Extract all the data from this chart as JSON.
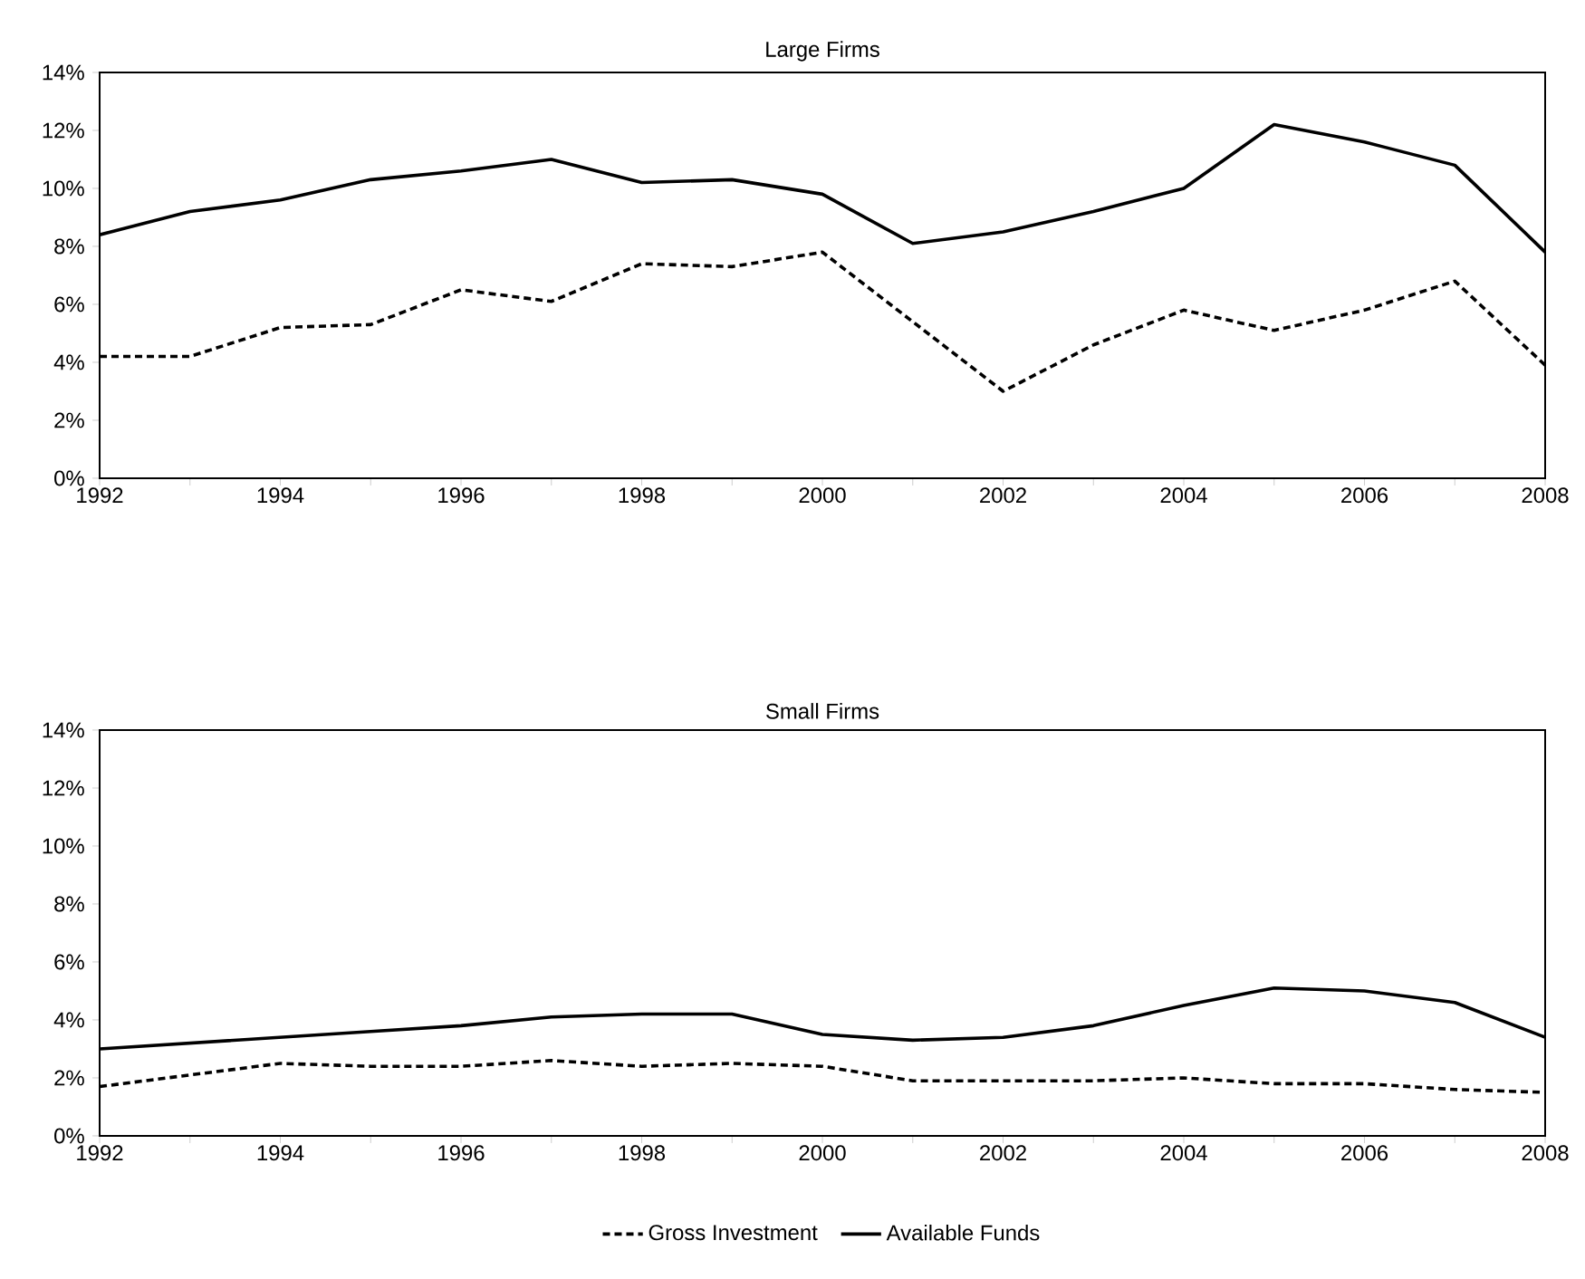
{
  "chart_data": [
    {
      "type": "line",
      "title": "Large Firms",
      "x": [
        1992,
        1993,
        1994,
        1995,
        1996,
        1997,
        1998,
        1999,
        2000,
        2001,
        2002,
        2003,
        2004,
        2005,
        2006,
        2007,
        2008
      ],
      "series": [
        {
          "color": "#000000",
          "line_style": "dashed",
          "values": [
            4.2,
            4.2,
            5.2,
            5.3,
            6.5,
            6.1,
            7.4,
            7.3,
            7.8,
            5.4,
            3.0,
            4.6,
            5.8,
            5.1,
            5.8,
            6.8,
            3.9
          ]
        },
        {
          "color": "#000000",
          "line_style": "solid",
          "values": [
            8.4,
            9.2,
            9.6,
            10.3,
            10.6,
            11.0,
            10.2,
            10.3,
            9.8,
            8.1,
            8.5,
            9.2,
            10.0,
            12.2,
            11.6,
            10.8,
            7.8
          ]
        }
      ],
      "xlim": [
        1992,
        2008
      ],
      "xticks": [
        1992,
        {
          "value": 1993,
          "label": null
        },
        1994,
        {
          "value": 1995,
          "label": null
        },
        1996,
        {
          "value": 1997,
          "label": null
        },
        1998,
        {
          "value": 1999,
          "label": null
        },
        2000,
        {
          "value": 2001,
          "label": null
        },
        2002,
        {
          "value": 2003,
          "label": null
        },
        2004,
        {
          "value": 2005,
          "label": null
        },
        2006,
        {
          "value": 2007,
          "label": null
        },
        2008
      ],
      "ylim": [
        0,
        14
      ],
      "yticks": [
        {
          "value": 0,
          "label": "0%"
        },
        {
          "value": 2,
          "label": "2%"
        },
        {
          "value": 4,
          "label": "4%"
        },
        {
          "value": 6,
          "label": "6%"
        },
        {
          "value": 8,
          "label": "8%"
        },
        {
          "value": 10,
          "label": "10%"
        },
        {
          "value": 12,
          "label": "12%"
        },
        {
          "value": 14,
          "label": "14%"
        }
      ],
      "grid": false,
      "marker": "none"
    },
    {
      "type": "line",
      "title": "Small Firms",
      "x": [
        1992,
        1993,
        1994,
        1995,
        1996,
        1997,
        1998,
        1999,
        2000,
        2001,
        2002,
        2003,
        2004,
        2005,
        2006,
        2007,
        2008
      ],
      "series": [
        {
          "name": "Gross Investment",
          "color": "#000000",
          "line_style": "dashed",
          "values": [
            1.7,
            2.1,
            2.5,
            2.4,
            2.4,
            2.6,
            2.4,
            2.5,
            2.4,
            1.9,
            1.9,
            1.9,
            2.0,
            1.8,
            1.8,
            1.6,
            1.5
          ]
        },
        {
          "name": "Available Funds",
          "color": "#000000",
          "line_style": "solid",
          "values": [
            3.0,
            3.2,
            3.4,
            3.6,
            3.8,
            4.1,
            4.2,
            4.2,
            3.5,
            3.3,
            3.4,
            3.8,
            4.5,
            5.1,
            5.0,
            4.6,
            3.4
          ]
        }
      ],
      "xlim": [
        1992,
        2008
      ],
      "xticks": [
        1992,
        {
          "value": 1993,
          "label": null
        },
        1994,
        {
          "value": 1995,
          "label": null
        },
        1996,
        {
          "value": 1997,
          "label": null
        },
        1998,
        {
          "value": 1999,
          "label": null
        },
        2000,
        {
          "value": 2001,
          "label": null
        },
        2002,
        {
          "value": 2003,
          "label": null
        },
        2004,
        {
          "value": 2005,
          "label": null
        },
        2006,
        {
          "value": 2007,
          "label": null
        },
        2008
      ],
      "ylim": [
        0,
        14
      ],
      "yticks": [
        {
          "value": 0,
          "label": "0%"
        },
        {
          "value": 2,
          "label": "2%"
        },
        {
          "value": 4,
          "label": "4%"
        },
        {
          "value": 6,
          "label": "6%"
        },
        {
          "value": 8,
          "label": "8%"
        },
        {
          "value": 10,
          "label": "10%"
        },
        {
          "value": 12,
          "label": "12%"
        },
        {
          "value": 14,
          "label": "14%"
        }
      ],
      "grid": false,
      "marker": "none",
      "legend": "bottom"
    }
  ]
}
